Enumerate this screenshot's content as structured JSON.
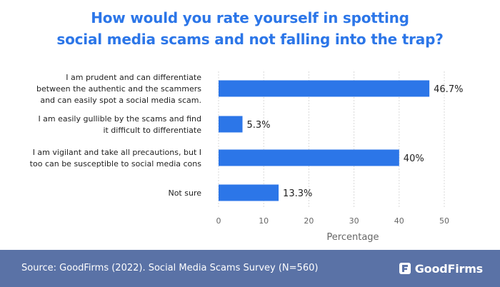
{
  "chart_data": {
    "type": "bar",
    "orientation": "horizontal",
    "title_lines": [
      "How would you rate yourself in spotting",
      "social media scams and not falling into the trap?"
    ],
    "categories": [
      [
        "I am prudent and can differentiate",
        "between the authentic and the scammers",
        "and can easily spot a social media scam."
      ],
      [
        "I am easily gullible by the scams and find",
        "it difficult to differentiate"
      ],
      [
        "I am vigilant and take all precautions, but I",
        "too can be susceptible to social media cons"
      ],
      [
        "Not sure"
      ]
    ],
    "values": [
      46.7,
      5.3,
      40,
      13.3
    ],
    "value_labels": [
      "46.7%",
      "5.3%",
      "40%",
      "13.3%"
    ],
    "xlabel": "Percentage",
    "xlim": [
      0,
      50
    ],
    "xticks": [
      0,
      10,
      20,
      30,
      40,
      50
    ],
    "grid": true,
    "bar_color": "#2c76e8"
  },
  "footer": {
    "source": "Source: GoodFirms (2022). Social Media Scams Survey (N=560)",
    "brand": "GoodFirms"
  },
  "colors": {
    "title": "#2c76e8",
    "footer_bg": "#5a72a6",
    "grid": "#d9d9d9",
    "axis_text": "#666666",
    "label_text": "#222222"
  }
}
